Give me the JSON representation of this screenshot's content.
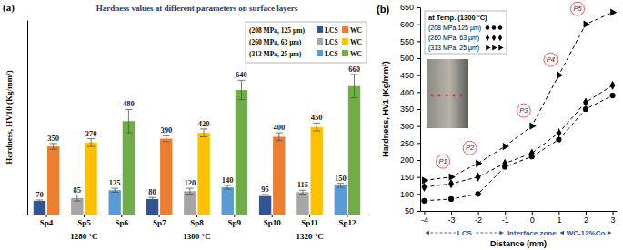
{
  "chart_data": [
    {
      "type": "bar",
      "panel_label": "(a)",
      "title": "Hardness values at different parameters on surface layers",
      "y_label": "Hardness, HV10 (Kg/mm²)",
      "categories": [
        "Sp4",
        "Sp5",
        "Sp6",
        "Sp7",
        "Sp8",
        "Sp9",
        "Sp10",
        "Sp11",
        "Sp12"
      ],
      "category_groups": [
        {
          "label": "1280 °C",
          "categories": [
            "Sp4",
            "Sp5",
            "Sp6"
          ]
        },
        {
          "label": "1300 °C",
          "categories": [
            "Sp7",
            "Sp8",
            "Sp9"
          ]
        },
        {
          "label": "1320 °C",
          "categories": [
            "Sp10",
            "Sp11",
            "Sp12"
          ]
        }
      ],
      "series_groups": [
        {
          "name": "(208 MPa, 125 µm)",
          "series": [
            {
              "name": "LCS",
              "color": "#2f5597",
              "values": [
                70,
                null,
                null,
                80,
                null,
                null,
                95,
                null,
                null
              ],
              "errors": [
                5,
                null,
                null,
                8,
                null,
                null,
                8,
                null,
                null
              ]
            },
            {
              "name": "WC",
              "color": "#ed7d31",
              "values": [
                350,
                null,
                null,
                390,
                null,
                null,
                400,
                null,
                null
              ],
              "errors": [
                15,
                null,
                null,
                15,
                null,
                null,
                20,
                null,
                null
              ]
            }
          ]
        },
        {
          "name": "(260 MPa, 63 µm)",
          "series": [
            {
              "name": "LCS",
              "color": "#a5a5a5",
              "values": [
                null,
                85,
                null,
                null,
                120,
                null,
                null,
                115,
                null
              ],
              "errors": [
                null,
                15,
                null,
                null,
                15,
                null,
                null,
                10,
                null
              ]
            },
            {
              "name": "WC",
              "color": "#ffc000",
              "values": [
                null,
                370,
                null,
                null,
                420,
                null,
                null,
                450,
                null
              ],
              "errors": [
                null,
                20,
                null,
                null,
                20,
                null,
                null,
                20,
                null
              ]
            }
          ]
        },
        {
          "name": "(313 MPa, 25 µm)",
          "series": [
            {
              "name": "LCS",
              "color": "#5b9bd5",
              "values": [
                null,
                null,
                125,
                null,
                null,
                140,
                null,
                null,
                150
              ],
              "errors": [
                null,
                null,
                10,
                null,
                null,
                10,
                null,
                null,
                10
              ]
            },
            {
              "name": "WC",
              "color": "#70ad47",
              "values": [
                null,
                null,
                480,
                null,
                null,
                640,
                null,
                null,
                660
              ],
              "errors": [
                null,
                null,
                60,
                null,
                null,
                50,
                null,
                null,
                60
              ]
            }
          ]
        }
      ],
      "ylim": [
        0,
        1000
      ],
      "tick_labels": "x",
      "data_labels": true,
      "grid": false,
      "legend": "upper right"
    },
    {
      "type": "line",
      "panel_label": "(b)",
      "x_label": "Distance (mm)",
      "y_label": "Hardness, HV1 (Kg/mm²)",
      "legend_title": "at Temp. (1300 °C)",
      "x": [
        -4,
        -3,
        -2,
        -1,
        0,
        1,
        2,
        3
      ],
      "series": [
        {
          "name": "(208 MPa,125 µm)",
          "color": "#000000",
          "marker": "circle",
          "line_style": "dashed",
          "values": [
            80,
            85,
            100,
            180,
            210,
            260,
            350,
            390
          ]
        },
        {
          "name": "(260 MPa, 63 µm)",
          "color": "#000000",
          "marker": "diamond",
          "line_style": "dashed",
          "values": [
            120,
            130,
            150,
            190,
            220,
            280,
            370,
            420
          ]
        },
        {
          "name": "(313 MPa, 25 µm)",
          "color": "#000000",
          "marker": "triangle-right",
          "line_style": "dashed",
          "values": [
            140,
            150,
            190,
            240,
            300,
            450,
            600,
            635
          ]
        }
      ],
      "xlim": [
        -4.15,
        3.15
      ],
      "xticks": [
        -4,
        -3,
        -2,
        -1,
        0,
        1,
        2,
        3
      ],
      "ylim": [
        50,
        650
      ],
      "yticks": [
        50,
        100,
        150,
        200,
        250,
        300,
        350,
        400,
        450,
        500,
        550,
        600,
        650
      ],
      "regions": [
        {
          "label": "LCS",
          "from": -4,
          "to": -1
        },
        {
          "label": "Interface zone",
          "from": -1,
          "to": 1
        },
        {
          "label": "WC-12%Co",
          "from": 1,
          "to": 3
        }
      ],
      "annotations": [
        {
          "text": "P1",
          "x": -3,
          "y": 150
        },
        {
          "text": "P2",
          "x": -2,
          "y": 190
        },
        {
          "text": "P3",
          "x": 0,
          "y": 300
        },
        {
          "text": "P4",
          "x": 1,
          "y": 450
        },
        {
          "text": "P5",
          "x": 2,
          "y": 600
        }
      ],
      "grid": false,
      "legend": "upper left"
    }
  ]
}
